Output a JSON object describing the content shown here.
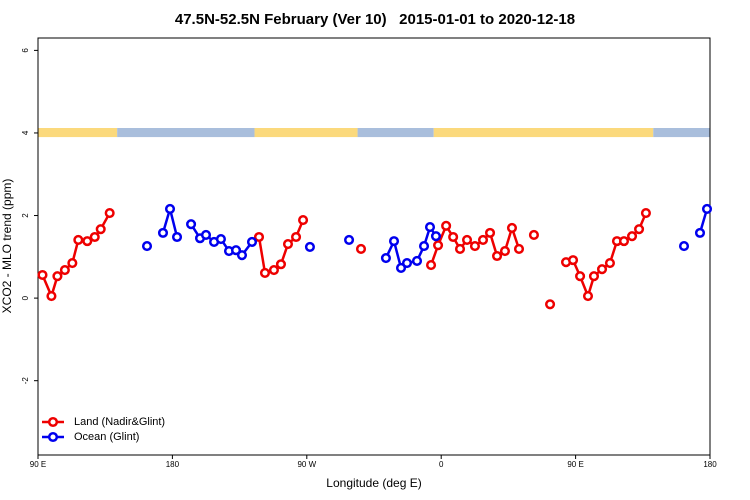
{
  "chart_data": {
    "type": "line",
    "title": "47.5N-52.5N February (Ver 10)   2015-01-01 to 2020-12-18",
    "xlabel": "Longitude (deg E)",
    "ylabel": "XCO2 - MLO trend (ppm)",
    "xlim": [
      90,
      540
    ],
    "xticks": [
      {
        "value": 90,
        "label": "90 E"
      },
      180,
      {
        "value": 270,
        "label": "90 W"
      },
      {
        "value": 360,
        "label": "0"
      },
      {
        "value": 450,
        "label": "90 E"
      },
      {
        "value": 540,
        "label": "180"
      }
    ],
    "ylim": [
      -3.8,
      6.3
    ],
    "yticks": [
      -2,
      0,
      2,
      4,
      6
    ],
    "legend": "lower left",
    "mask_band": {
      "ylim": [
        3.9,
        4.12
      ],
      "segments": [
        {
          "from": 90,
          "to": 143,
          "color": "#fbd97c"
        },
        {
          "from": 143,
          "to": 235,
          "color": "#a9bedc"
        },
        {
          "from": 235,
          "to": 304,
          "color": "#fbd97c"
        },
        {
          "from": 304,
          "to": 355,
          "color": "#a9bedc"
        },
        {
          "from": 355,
          "to": 502,
          "color": "#fbd97c"
        },
        {
          "from": 502,
          "to": 540,
          "color": "#a9bedc"
        }
      ]
    },
    "series": [
      {
        "name": "Land (Nadir&Glint)",
        "color": "#ee0000",
        "x": [
          93,
          99,
          103,
          108,
          113,
          117,
          123,
          128,
          132,
          138,
          null,
          238,
          242,
          248,
          252.7,
          257.4,
          262.8,
          267.5,
          null,
          306.3,
          null,
          353.2,
          357.9,
          363.3,
          368,
          372.6,
          377.3,
          382.6,
          388,
          392.7,
          397.4,
          402.7,
          407.4,
          412.1,
          null,
          422.1,
          null,
          432.9,
          null,
          443.6,
          448.3,
          453,
          458.3,
          462.3,
          467.7,
          473,
          477.7,
          482.4,
          487.8,
          492.5,
          497.1
        ],
        "values": [
          0.56,
          0.05,
          0.53,
          0.68,
          0.85,
          1.41,
          1.38,
          1.48,
          1.67,
          2.06,
          null,
          1.48,
          0.61,
          0.68,
          0.82,
          1.31,
          1.48,
          1.89,
          null,
          1.19,
          null,
          0.8,
          1.28,
          1.75,
          1.48,
          1.19,
          1.41,
          1.26,
          1.41,
          1.58,
          1.02,
          1.14,
          1.7,
          1.19,
          null,
          1.53,
          null,
          -0.15,
          null,
          0.87,
          0.92,
          0.53,
          0.05,
          0.53,
          0.7,
          0.85,
          1.38,
          1.38,
          1.5,
          1.67,
          2.06
        ]
      },
      {
        "name": "Ocean (Glint)",
        "color": "#0000ee",
        "x": [
          163,
          null,
          173.7,
          178.4,
          183.1,
          null,
          192.5,
          198.5,
          202.5,
          207.9,
          212.5,
          217.9,
          222.6,
          226.6,
          233.3,
          null,
          272.1,
          null,
          298.3,
          null,
          323,
          328.4,
          333.1,
          337.1,
          343.8,
          348.5,
          352.5,
          356.5,
          null,
          522.6,
          null,
          533.3,
          538
        ],
        "values": [
          1.26,
          null,
          1.58,
          2.16,
          1.48,
          null,
          1.79,
          1.45,
          1.53,
          1.36,
          1.43,
          1.14,
          1.16,
          1.04,
          1.36,
          null,
          1.24,
          null,
          1.41,
          null,
          0.97,
          1.38,
          0.73,
          0.85,
          0.9,
          1.26,
          1.72,
          1.5,
          null,
          1.26,
          null,
          1.58,
          2.16
        ]
      }
    ]
  }
}
